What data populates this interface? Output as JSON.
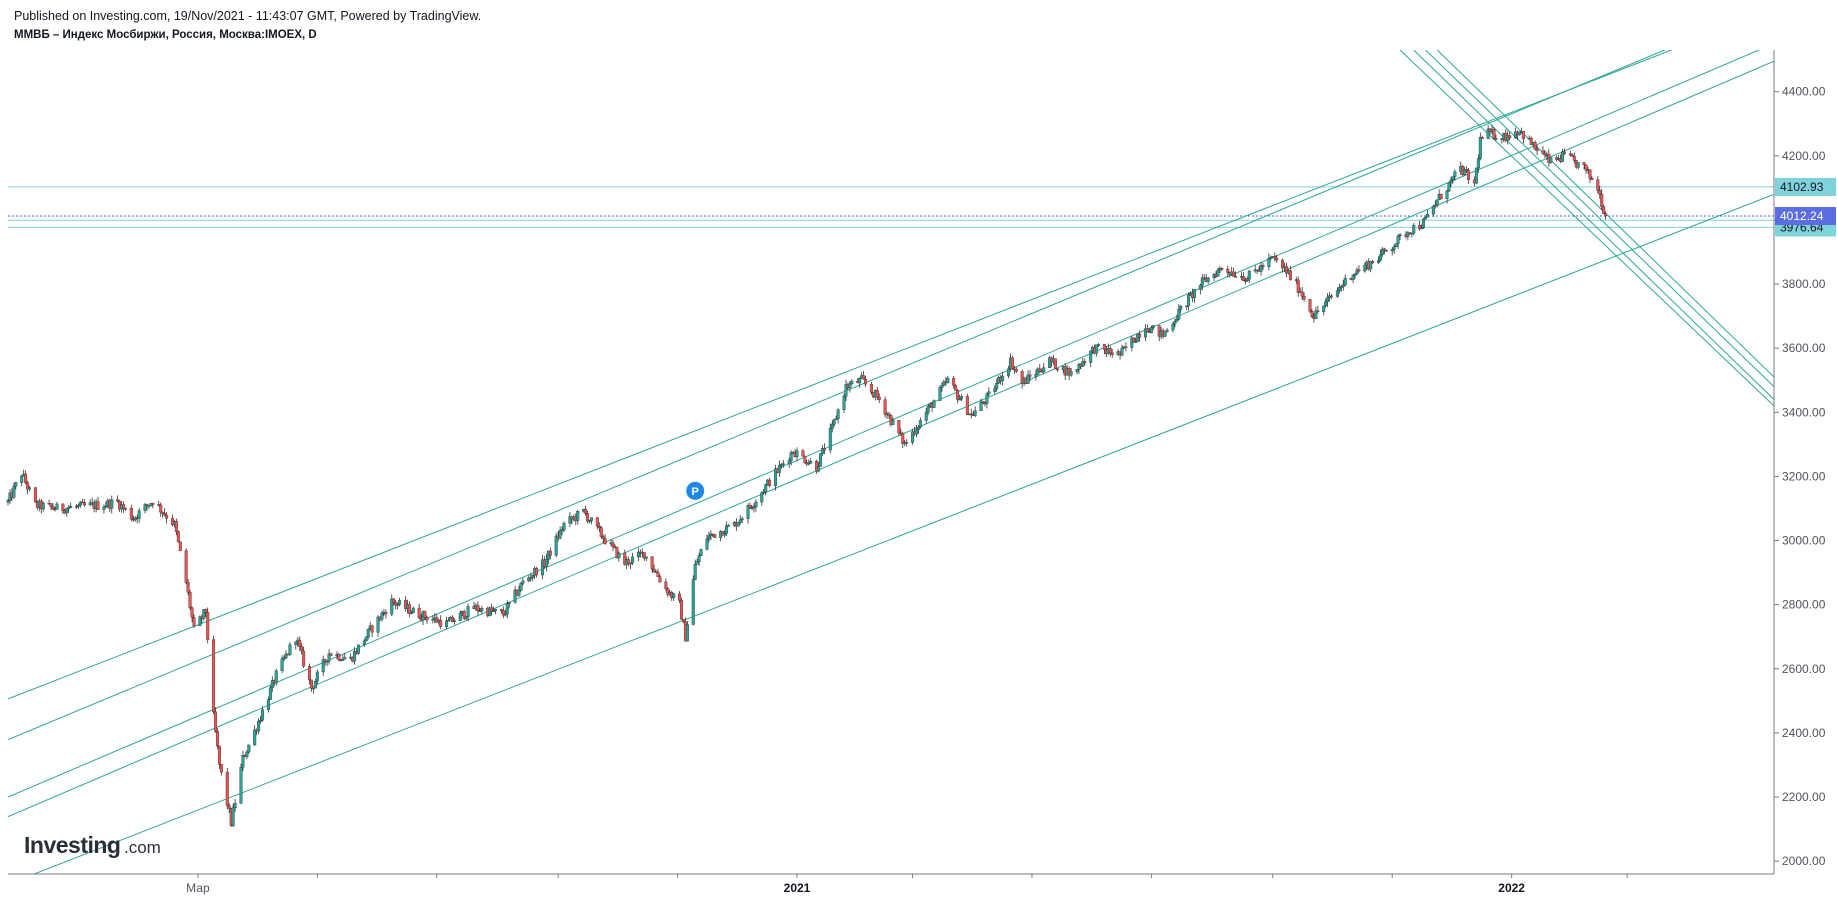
{
  "header": {
    "published": "Published on Investing.com, 19/Nov/2021 - 11:43:07 GMT, Powered by TradingView.",
    "symbol": "ММВБ – Индекс Мосбиржи, Россия, Москва:IMOEX, D"
  },
  "logo": {
    "brand": "Investing",
    "suffix": ".com"
  },
  "marker": {
    "label": "P"
  },
  "colors": {
    "up": "#26a69a",
    "down": "#ef5350",
    "trendline": "#2ba79a",
    "level_line": "#7fd3da",
    "level_badge": "#7fd3da",
    "last_badge": "#5b6ee1",
    "last_line": "#4561e0",
    "marker": "#1e88e5",
    "axis": "#50535e"
  },
  "chart_data": {
    "type": "candlestick",
    "title": "ММВБ – Индекс Мосбиржи, Россия, Москва:IMOEX, D",
    "xlabel": "",
    "ylabel": "",
    "x_range": [
      "2019-11-25",
      "2022-05-15"
    ],
    "ylim": [
      1960,
      4530
    ],
    "y_ticks": [
      "4400.00",
      "4200.00",
      "4000.00",
      "3800.00",
      "3600.00",
      "3400.00",
      "3200.00",
      "3000.00",
      "2800.00",
      "2600.00",
      "2400.00",
      "2200.00",
      "2000.00"
    ],
    "x_ticks": [
      {
        "label": "Мар",
        "date": "2020-03-01",
        "bold": false
      },
      {
        "label": "",
        "date": "2020-05-01",
        "bold": false
      },
      {
        "label": "",
        "date": "2020-07-01",
        "bold": false
      },
      {
        "label": "",
        "date": "2020-09-01",
        "bold": false
      },
      {
        "label": "",
        "date": "2020-11-01",
        "bold": false
      },
      {
        "label": "2021",
        "date": "2021-01-01",
        "bold": true
      },
      {
        "label": "",
        "date": "2021-03-01",
        "bold": false
      },
      {
        "label": "",
        "date": "2021-05-01",
        "bold": false
      },
      {
        "label": "",
        "date": "2021-07-01",
        "bold": false
      },
      {
        "label": "",
        "date": "2021-09-01",
        "bold": false
      },
      {
        "label": "",
        "date": "2021-11-01",
        "bold": false
      },
      {
        "label": "2022",
        "date": "2022-01-01",
        "bold": true
      },
      {
        "label": "",
        "date": "2022-03-01",
        "bold": false
      }
    ],
    "price_path": [
      [
        "2019-11-25",
        3120
      ],
      [
        "2019-12-02",
        3210
      ],
      [
        "2019-12-09",
        3110
      ],
      [
        "2019-12-20",
        3100
      ],
      [
        "2020-01-10",
        3110
      ],
      [
        "2020-01-20",
        3120
      ],
      [
        "2020-01-28",
        3070
      ],
      [
        "2020-02-07",
        3125
      ],
      [
        "2020-02-18",
        3050
      ],
      [
        "2020-02-24",
        2870
      ],
      [
        "2020-02-28",
        2720
      ],
      [
        "2020-03-05",
        2780
      ],
      [
        "2020-03-09",
        2450
      ],
      [
        "2020-03-12",
        2300
      ],
      [
        "2020-03-18",
        2120
      ],
      [
        "2020-03-24",
        2320
      ],
      [
        "2020-03-31",
        2420
      ],
      [
        "2020-04-10",
        2580
      ],
      [
        "2020-04-20",
        2700
      ],
      [
        "2020-04-28",
        2540
      ],
      [
        "2020-05-07",
        2650
      ],
      [
        "2020-05-18",
        2630
      ],
      [
        "2020-05-28",
        2720
      ],
      [
        "2020-06-08",
        2810
      ],
      [
        "2020-06-22",
        2770
      ],
      [
        "2020-07-06",
        2740
      ],
      [
        "2020-07-20",
        2790
      ],
      [
        "2020-08-04",
        2770
      ],
      [
        "2020-08-14",
        2870
      ],
      [
        "2020-08-25",
        2930
      ],
      [
        "2020-09-04",
        3050
      ],
      [
        "2020-09-14",
        3090
      ],
      [
        "2020-09-24",
        3010
      ],
      [
        "2020-10-05",
        2930
      ],
      [
        "2020-10-15",
        2960
      ],
      [
        "2020-10-26",
        2850
      ],
      [
        "2020-11-02",
        2800
      ],
      [
        "2020-11-05",
        2700
      ],
      [
        "2020-11-10",
        2920
      ],
      [
        "2020-11-16",
        3010
      ],
      [
        "2020-11-30",
        3050
      ],
      [
        "2020-12-10",
        3120
      ],
      [
        "2020-12-21",
        3210
      ],
      [
        "2020-12-30",
        3280
      ],
      [
        "2021-01-11",
        3230
      ],
      [
        "2021-01-19",
        3350
      ],
      [
        "2021-01-26",
        3480
      ],
      [
        "2021-02-03",
        3500
      ],
      [
        "2021-02-12",
        3440
      ],
      [
        "2021-02-25",
        3300
      ],
      [
        "2021-03-08",
        3400
      ],
      [
        "2021-03-19",
        3500
      ],
      [
        "2021-03-31",
        3390
      ],
      [
        "2021-04-09",
        3450
      ],
      [
        "2021-04-20",
        3560
      ],
      [
        "2021-04-26",
        3490
      ],
      [
        "2021-05-10",
        3560
      ],
      [
        "2021-05-21",
        3520
      ],
      [
        "2021-06-02",
        3600
      ],
      [
        "2021-06-15",
        3580
      ],
      [
        "2021-06-28",
        3670
      ],
      [
        "2021-07-07",
        3640
      ],
      [
        "2021-07-16",
        3720
      ],
      [
        "2021-07-26",
        3800
      ],
      [
        "2021-08-06",
        3850
      ],
      [
        "2021-08-19",
        3820
      ],
      [
        "2021-09-01",
        3880
      ],
      [
        "2021-09-08",
        3840
      ],
      [
        "2021-09-15",
        3780
      ],
      [
        "2021-09-22",
        3700
      ],
      [
        "2021-10-01",
        3760
      ],
      [
        "2021-10-11",
        3830
      ],
      [
        "2021-10-22",
        3870
      ],
      [
        "2021-11-01",
        3920
      ],
      [
        "2021-11-10",
        3970
      ],
      [
        "2021-11-17",
        3990
      ],
      [
        "2021-11-24",
        4060
      ],
      [
        "2021-12-06",
        4160
      ],
      [
        "2021-12-13",
        4110
      ],
      [
        "2021-12-16",
        4250
      ],
      [
        "2021-12-20",
        4270
      ],
      [
        "2021-12-28",
        4260
      ],
      [
        "2022-01-05",
        4280
      ],
      [
        "2022-01-12",
        4230
      ],
      [
        "2022-01-21",
        4180
      ],
      [
        "2022-01-28",
        4200
      ],
      [
        "2022-02-07",
        4160
      ],
      [
        "2022-02-14",
        4100
      ],
      [
        "2022-02-18",
        4012.24
      ]
    ],
    "horizontal_levels": [
      {
        "label": "4102.93",
        "value": 4102.93
      },
      {
        "label": "3998.93",
        "value": 3998.93
      },
      {
        "label": "3976.64",
        "value": 3976.64
      }
    ],
    "last_price": {
      "label": "4012.24",
      "value": 4012.24
    },
    "trendlines": [
      [
        [
          "2019-11-25",
          2506
        ],
        [
          "2022-04-01",
          4550
        ]
      ],
      [
        [
          "2019-11-25",
          2379
        ],
        [
          "2022-04-01",
          4560
        ]
      ],
      [
        [
          "2019-11-25",
          2200
        ],
        [
          "2022-05-15",
          4550
        ]
      ],
      [
        [
          "2019-11-25",
          2139
        ],
        [
          "2022-05-15",
          4495
        ]
      ],
      [
        [
          "2019-11-30",
          1940
        ],
        [
          "2022-05-15",
          4080
        ]
      ],
      [
        [
          "2021-11-05",
          4530
        ],
        [
          "2022-05-15",
          3420
        ]
      ],
      [
        [
          "2021-11-12",
          4530
        ],
        [
          "2022-05-15",
          3440
        ]
      ],
      [
        [
          "2021-11-18",
          4530
        ],
        [
          "2022-05-15",
          3480
        ]
      ],
      [
        [
          "2021-11-24",
          4530
        ],
        [
          "2022-05-15",
          3510
        ]
      ]
    ],
    "marker": {
      "date": "2020-11-10",
      "value": 3155,
      "label": "P"
    }
  }
}
